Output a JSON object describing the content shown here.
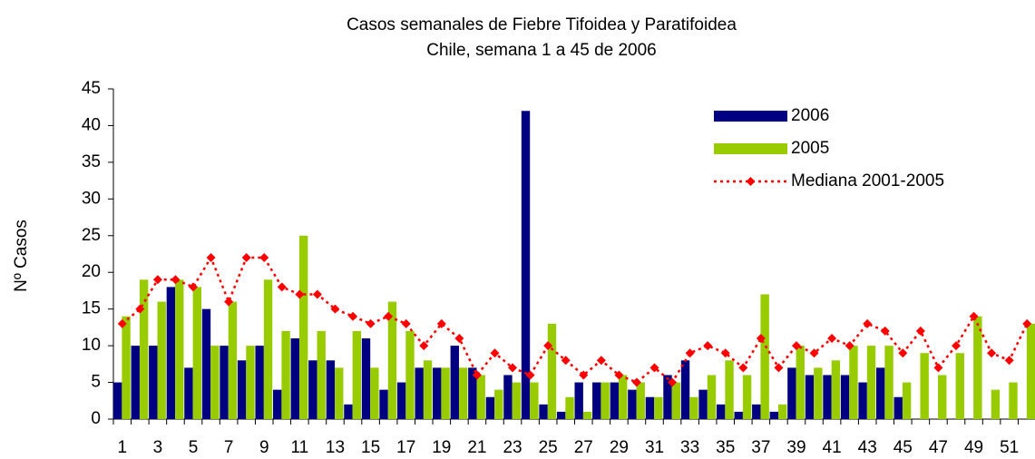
{
  "chart_data": {
    "type": "bar_line",
    "title": "Casos semanales de Fiebre Tifoidea y Paratifoidea",
    "subtitle": "Chile, semana 1 a 45 de 2006",
    "y_label": "Nº Casos",
    "categories": [
      1,
      null,
      3,
      null,
      5,
      null,
      7,
      null,
      9,
      null,
      11,
      null,
      13,
      null,
      15,
      null,
      17,
      null,
      19,
      null,
      21,
      null,
      23,
      null,
      25,
      null,
      27,
      null,
      29,
      null,
      31,
      null,
      33,
      null,
      35,
      null,
      37,
      null,
      39,
      null,
      41,
      null,
      43,
      null,
      45,
      null,
      47,
      null,
      49,
      null,
      51,
      null
    ],
    "series": [
      {
        "name": "2006",
        "color": "#000080",
        "kind": "bar",
        "values": [
          5,
          10,
          10,
          18,
          7,
          15,
          10,
          8,
          10,
          4,
          11,
          8,
          8,
          2,
          11,
          4,
          5,
          7,
          7,
          10,
          7,
          3,
          6,
          42,
          2,
          1,
          5,
          5,
          5,
          4,
          3,
          6,
          8,
          4,
          2,
          1,
          2,
          1,
          7,
          6,
          6,
          6,
          5,
          7,
          3,
          null,
          null,
          null,
          null,
          null,
          null,
          null
        ]
      },
      {
        "name": "2005",
        "color": "#99cc00",
        "kind": "bar",
        "values": [
          14,
          19,
          16,
          19,
          18,
          10,
          16,
          10,
          19,
          12,
          25,
          12,
          7,
          12,
          7,
          16,
          12,
          8,
          7,
          7,
          6,
          4,
          5,
          5,
          13,
          3,
          1,
          5,
          6,
          5,
          3,
          5,
          3,
          6,
          8,
          6,
          17,
          2,
          10,
          7,
          8,
          10,
          10,
          10,
          5,
          9,
          6,
          9,
          14,
          4,
          5,
          13
        ]
      },
      {
        "name": "Mediana 2001-2005",
        "color": "#ff0000",
        "kind": "line",
        "values": [
          13,
          15,
          19,
          19,
          18,
          22,
          16,
          22,
          22,
          18,
          17,
          17,
          15,
          14,
          13,
          14,
          13,
          10,
          13,
          11,
          6,
          9,
          7,
          6,
          10,
          8,
          6,
          8,
          6,
          5,
          7,
          5,
          9,
          10,
          9,
          7,
          11,
          7,
          10,
          9,
          11,
          10,
          13,
          12,
          9,
          12,
          7,
          10,
          14,
          9,
          8,
          13
        ]
      }
    ],
    "ylim": [
      0,
      45
    ],
    "yticks": [
      0,
      5,
      10,
      15,
      20,
      25,
      30,
      35,
      40,
      45
    ],
    "legend": "top-right"
  }
}
